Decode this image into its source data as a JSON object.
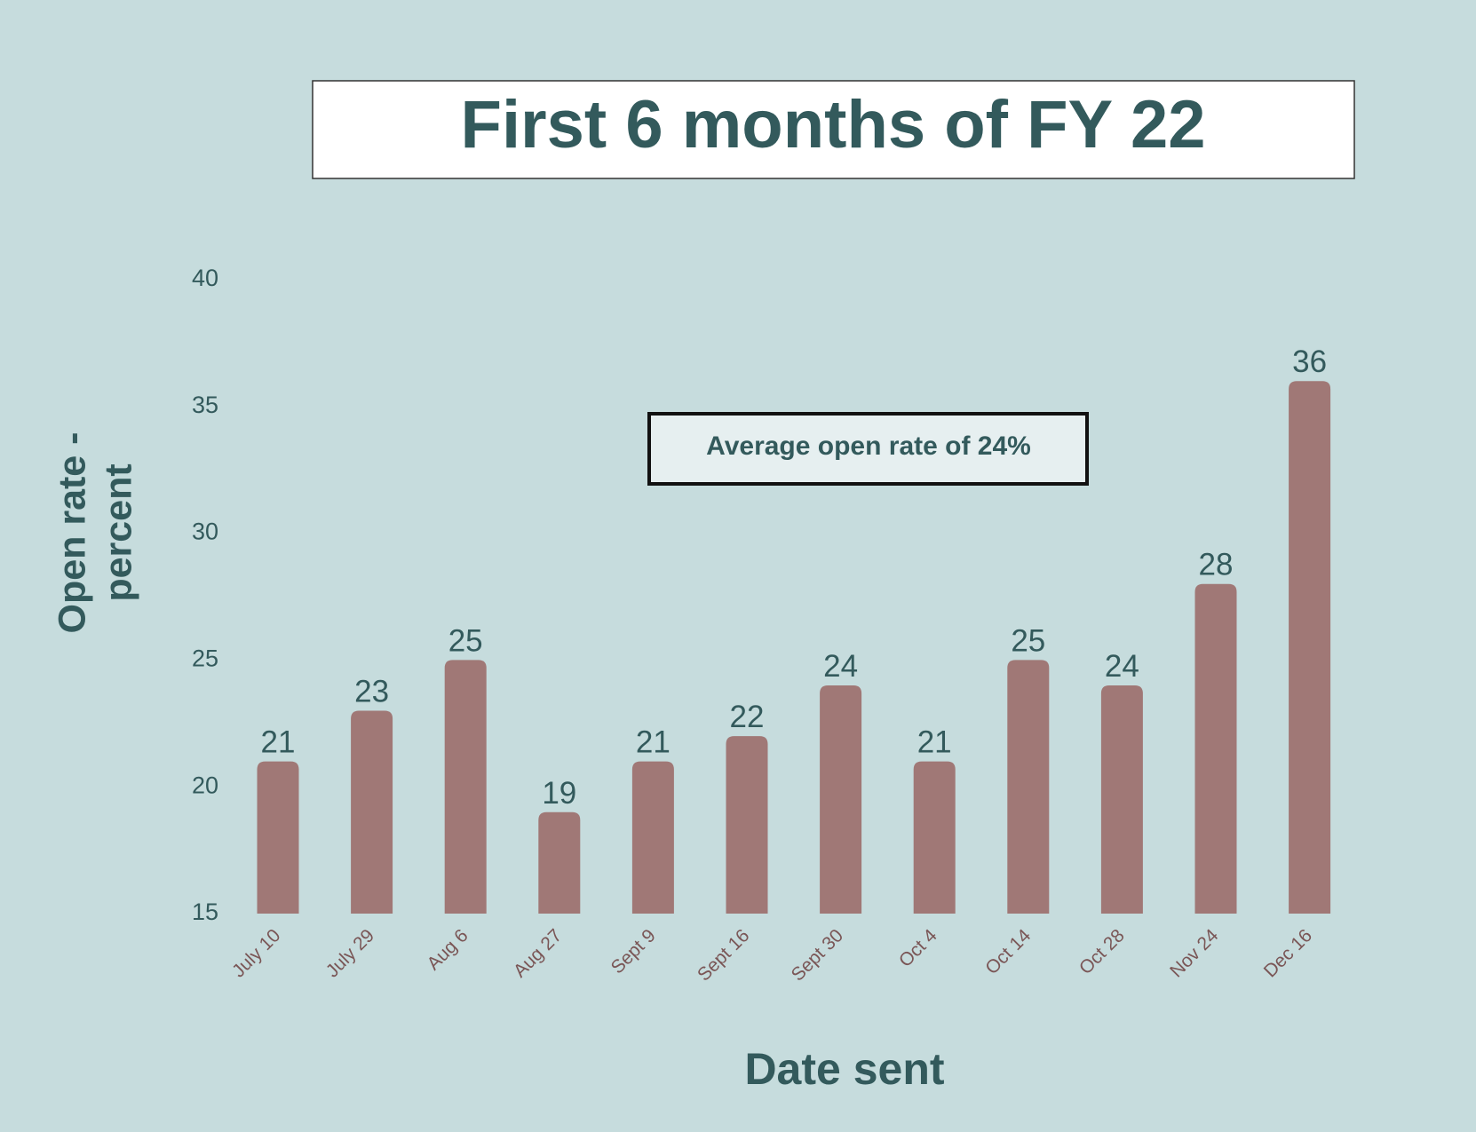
{
  "chart_data": {
    "type": "bar",
    "title": "First 6 months of FY 22",
    "annotation": "Average open rate of 24%",
    "x_label": "Date sent",
    "y_label": [
      "Open rate -",
      "percent"
    ],
    "categories": [
      "July 10",
      "July 29",
      "Aug 6",
      "Aug 27",
      "Sept 9",
      "Sept 16",
      "Sept 30",
      "Oct 4",
      "Oct 14",
      "Oct 28",
      "Nov 24",
      "Dec 16"
    ],
    "values": [
      21,
      23,
      25,
      19,
      21,
      22,
      24,
      21,
      25,
      24,
      28,
      36
    ],
    "color": "#a07876",
    "ylim": [
      15,
      40
    ],
    "yticks": [
      15,
      20,
      25,
      30,
      35,
      40
    ],
    "grid": false
  }
}
